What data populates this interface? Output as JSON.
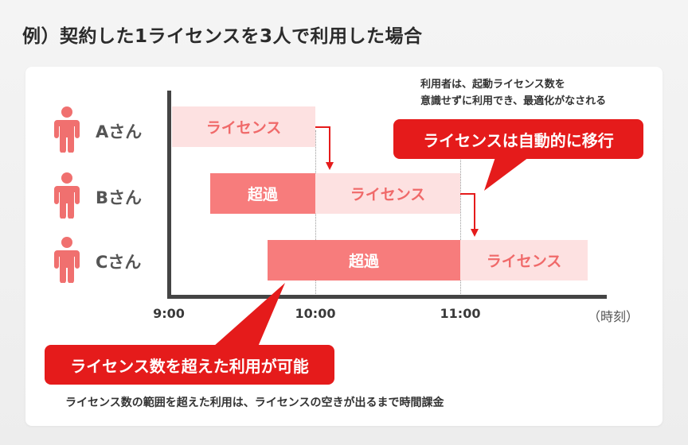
{
  "title": "例）契約した1ライセンスを3人で利用した場合",
  "users": [
    {
      "label": "Aさん",
      "icon": "person-icon"
    },
    {
      "label": "Bさん",
      "icon": "person-icon"
    },
    {
      "label": "Cさん",
      "icon": "person-icon"
    }
  ],
  "axis": {
    "ticks": [
      "9:00",
      "10:00",
      "11:00"
    ],
    "unit": "（時刻）"
  },
  "bars": [
    {
      "user": "Aさん",
      "type": "license",
      "label": "ライセンス",
      "start": "9:00",
      "end": "10:00"
    },
    {
      "user": "Bさん",
      "type": "over",
      "label": "超過",
      "start": "9:20",
      "end": "10:00"
    },
    {
      "user": "Bさん",
      "type": "license",
      "label": "ライセンス",
      "start": "10:00",
      "end": "11:00"
    },
    {
      "user": "Cさん",
      "type": "over",
      "label": "超過",
      "start": "9:40",
      "end": "11:00"
    },
    {
      "user": "Cさん",
      "type": "license",
      "label": "ライセンス",
      "start": "11:00",
      "end": "11:53"
    }
  ],
  "notes": {
    "top_line1": "利用者は、起動ライセンス数を",
    "top_line2": "意識せずに利用でき、最適化がなされる",
    "callout_auto": "ライセンスは自動的に移行",
    "callout_over": "ライセンス数を超えた利用が可能",
    "bottom": "ライセンス数の範囲を超えた利用は、ライセンスの空きが出るまで時間課金"
  },
  "colors": {
    "license_fill": "#fde1e1",
    "license_text": "#f06a6a",
    "over_fill": "#f77c7c",
    "callout": "#e51b1b",
    "person": "#f0706f"
  }
}
